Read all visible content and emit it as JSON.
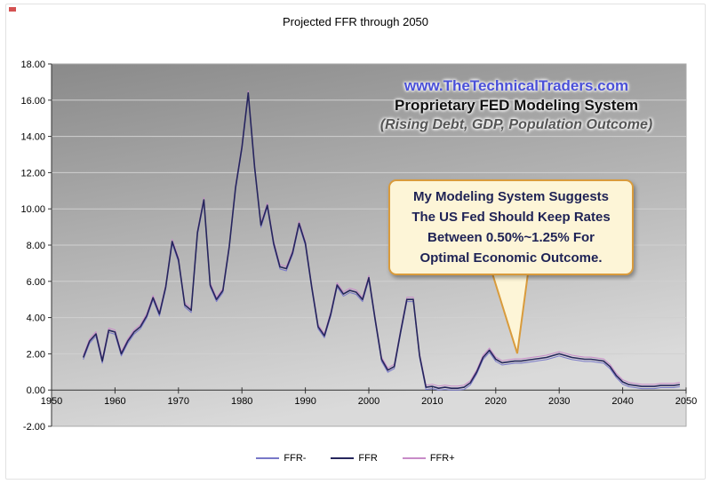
{
  "page": {
    "title": "Projected FFR through 2050"
  },
  "overlay": {
    "brand": "www.TheTechnicalTraders.com",
    "subtitle": "Proprietary FED Modeling System",
    "subnote": "(Rising Debt, GDP, Population Outcome)",
    "brand_color": "#4a50d8",
    "subtitle_color": "#111111",
    "subnote_color": "#555555"
  },
  "callout": {
    "lines": [
      "My Modeling System Suggests",
      "The US Fed Should Keep Rates",
      "Between 0.50%~1.25% For",
      "Optimal Economic Outcome."
    ],
    "bg": "#fdf5d7",
    "border": "#d99b3c",
    "text_color": "#1e2255"
  },
  "chart_data": {
    "type": "line",
    "title": "Projected FFR through 2050",
    "xlabel": "",
    "ylabel": "",
    "xlim": [
      1950,
      2050
    ],
    "xtick": 10,
    "ylim": [
      -2,
      18
    ],
    "ytick": 2,
    "grid": "horizontal",
    "legend_position": "bottom",
    "x": [
      1955,
      1956,
      1957,
      1958,
      1959,
      1960,
      1961,
      1962,
      1963,
      1964,
      1965,
      1966,
      1967,
      1968,
      1969,
      1970,
      1971,
      1972,
      1973,
      1974,
      1975,
      1976,
      1977,
      1978,
      1979,
      1980,
      1981,
      1982,
      1983,
      1984,
      1985,
      1986,
      1987,
      1988,
      1989,
      1990,
      1991,
      1992,
      1993,
      1994,
      1995,
      1996,
      1997,
      1998,
      1999,
      2000,
      2001,
      2002,
      2003,
      2004,
      2005,
      2006,
      2007,
      2008,
      2009,
      2010,
      2011,
      2012,
      2013,
      2014,
      2015,
      2016,
      2017,
      2018,
      2019,
      2020,
      2021,
      2022,
      2023,
      2024,
      2025,
      2026,
      2027,
      2028,
      2029,
      2030,
      2031,
      2032,
      2033,
      2034,
      2035,
      2036,
      2037,
      2038,
      2039,
      2040,
      2041,
      2042,
      2043,
      2044,
      2045,
      2046,
      2047,
      2048,
      2049
    ],
    "values": [
      1.8,
      2.7,
      3.1,
      1.6,
      3.3,
      3.2,
      2.0,
      2.7,
      3.2,
      3.5,
      4.1,
      5.1,
      4.2,
      5.7,
      8.2,
      7.2,
      4.7,
      4.4,
      8.7,
      10.5,
      5.8,
      5.0,
      5.5,
      7.9,
      11.2,
      13.4,
      16.4,
      12.3,
      9.1,
      10.2,
      8.1,
      6.8,
      6.7,
      7.6,
      9.2,
      8.1,
      5.7,
      3.5,
      3.0,
      4.2,
      5.8,
      5.3,
      5.5,
      5.4,
      5.0,
      6.2,
      3.9,
      1.7,
      1.1,
      1.3,
      3.2,
      5.0,
      5.0,
      1.9,
      0.15,
      0.2,
      0.1,
      0.15,
      0.1,
      0.1,
      0.15,
      0.4,
      1.0,
      1.8,
      2.2,
      1.7,
      1.5,
      1.55,
      1.6,
      1.6,
      1.65,
      1.7,
      1.75,
      1.8,
      1.9,
      2.0,
      1.9,
      1.8,
      1.75,
      1.7,
      1.7,
      1.65,
      1.6,
      1.3,
      0.8,
      0.45,
      0.3,
      0.25,
      0.2,
      0.2,
      0.2,
      0.25,
      0.25,
      0.25,
      0.3
    ],
    "series": [
      {
        "name": "FFR-",
        "color": "#7878c8",
        "offset": -0.12
      },
      {
        "name": "FFR",
        "color": "#26265c",
        "offset": 0
      },
      {
        "name": "FFR+",
        "color": "#c88cc8",
        "offset": 0.12
      }
    ],
    "colors": {
      "plot_top": "#8a8a8a",
      "plot_bottom": "#dadada",
      "grid": "#d0d0d0",
      "axis": "#333333"
    }
  }
}
